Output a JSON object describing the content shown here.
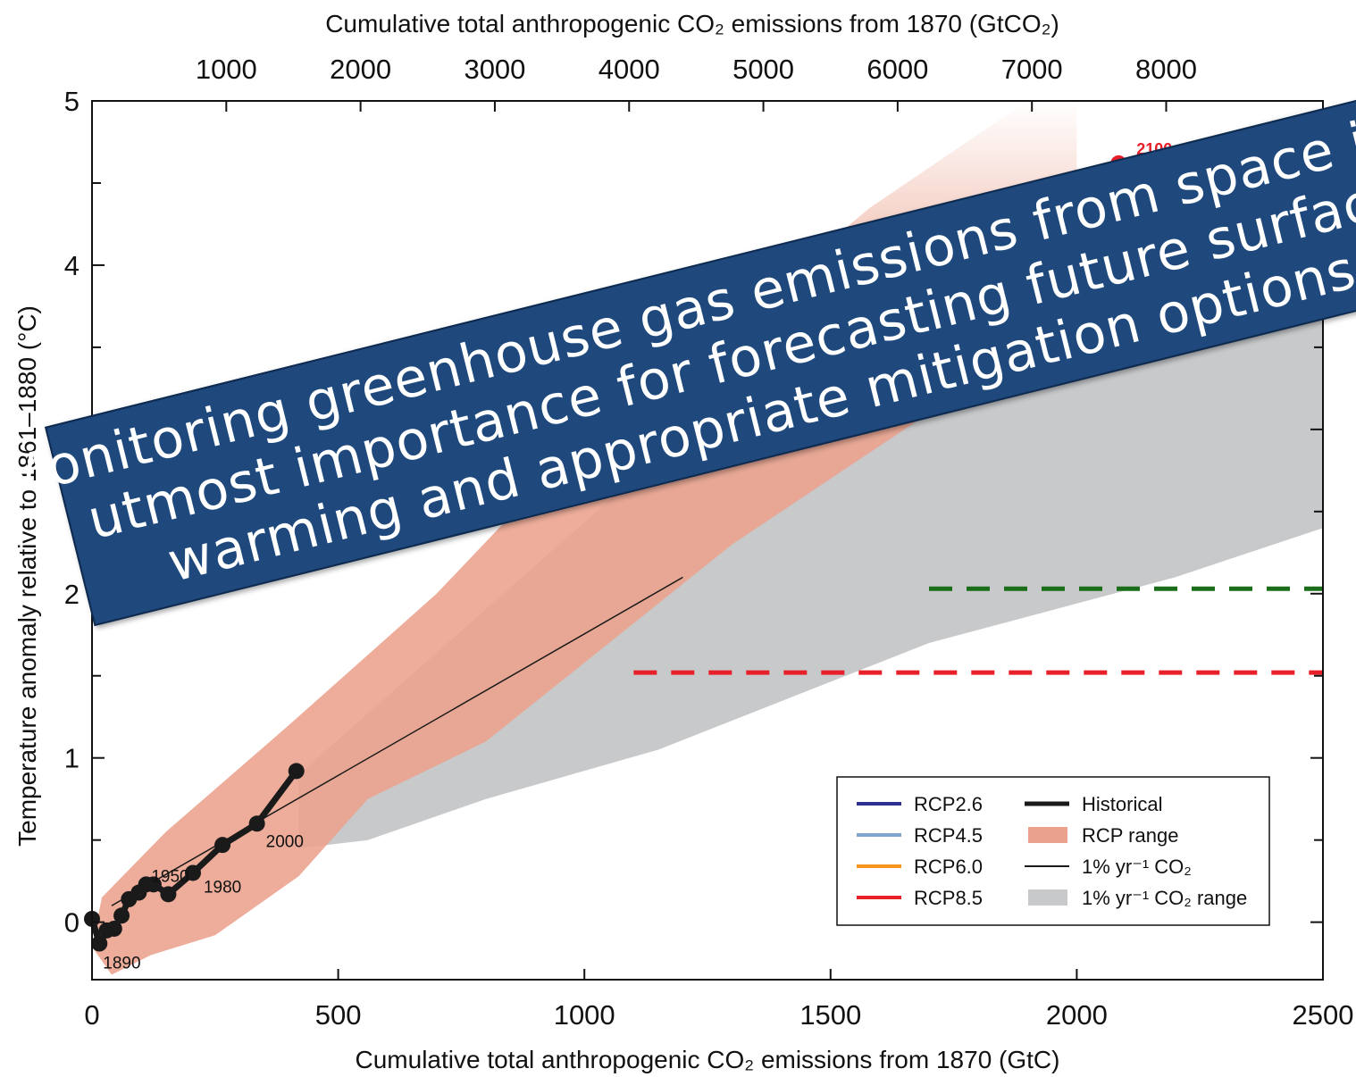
{
  "chart_data": {
    "type": "line",
    "title": "",
    "xlabel": "Cumulative total anthropogenic CO₂ emissions from 1870 (GtC)",
    "x2label": "Cumulative total anthropogenic CO₂ emissions from 1870 (GtCO₂)",
    "ylabel": "Temperature anomaly relative to 1861–1880 (°C)",
    "xlim": [
      0,
      2500
    ],
    "ylim": [
      -0.35,
      5
    ],
    "xticks": [
      "0",
      "500",
      "1000",
      "1500",
      "2000",
      "2500"
    ],
    "yticks": [
      "0",
      "1",
      "2",
      "3",
      "4",
      "5"
    ],
    "x2ticks": [
      "1000",
      "2000",
      "3000",
      "4000",
      "5000",
      "6000",
      "7000",
      "8000"
    ],
    "grid": false,
    "legend_position": "bottom-right",
    "legend": [
      {
        "label": "RCP2.6",
        "color": "#2e3192",
        "kind": "line"
      },
      {
        "label": "RCP4.5",
        "color": "#7fa6d1",
        "kind": "line"
      },
      {
        "label": "RCP6.0",
        "color": "#f7941d",
        "kind": "line"
      },
      {
        "label": "RCP8.5",
        "color": "#e8202a",
        "kind": "line"
      },
      {
        "label": "Historical",
        "color": "#1a1a1a",
        "kind": "thickline"
      },
      {
        "label": "RCP range",
        "color": "#eaa28c",
        "kind": "patch"
      },
      {
        "label": "1% yr⁻¹ CO₂",
        "color": "#1a1a1a",
        "kind": "thinline"
      },
      {
        "label": "1% yr⁻¹ CO₂ range",
        "color": "#c8c9cb",
        "kind": "patch"
      }
    ],
    "series": [
      {
        "name": "Historical",
        "color": "#1a1a1a",
        "x": [
          0,
          15,
          30,
          45,
          60,
          75,
          95,
          110,
          125,
          155,
          205,
          265,
          335,
          415
        ],
        "y": [
          0.02,
          -0.13,
          -0.05,
          -0.04,
          0.04,
          0.14,
          0.18,
          0.23,
          0.23,
          0.17,
          0.3,
          0.47,
          0.6,
          0.92
        ]
      },
      {
        "name": "RCP8.5",
        "color": "#e8202a",
        "x": [
          1580,
          1830,
          2085
        ],
        "y": [
          3.64,
          4.12,
          4.62
        ]
      },
      {
        "name": "1% yr⁻¹ CO₂",
        "color": "#1a1a1a",
        "x": [
          40,
          1200
        ],
        "y": [
          0.1,
          2.1
        ]
      },
      {
        "name": "2°C threshold",
        "color": "#1a6e1a",
        "dashed": true,
        "x": [
          1700,
          2500
        ],
        "y": [
          2.03,
          2.03
        ]
      },
      {
        "name": "1.5°C threshold",
        "color": "#e8202a",
        "dashed": true,
        "x": [
          1100,
          2500
        ],
        "y": [
          1.52,
          1.52
        ]
      }
    ],
    "bands": [
      {
        "name": "1% yr⁻¹ CO₂ range",
        "color": "#c8c9cb",
        "upper": [
          [
            420,
            0.9
          ],
          [
            1100,
            2.7
          ],
          [
            1700,
            3.8
          ],
          [
            2200,
            4.7
          ],
          [
            2500,
            5.0
          ]
        ],
        "lower": [
          [
            2500,
            2.4
          ],
          [
            2200,
            2.1
          ],
          [
            1700,
            1.7
          ],
          [
            1150,
            1.05
          ],
          [
            800,
            0.75
          ],
          [
            560,
            0.5
          ],
          [
            420,
            0.45
          ]
        ]
      },
      {
        "name": "RCP range",
        "color": "#eaa28c",
        "upper": [
          [
            20,
            0.15
          ],
          [
            150,
            0.55
          ],
          [
            400,
            1.2
          ],
          [
            700,
            2.0
          ],
          [
            1150,
            3.42
          ],
          [
            1380,
            3.85
          ],
          [
            1580,
            4.35
          ],
          [
            1900,
            5.0
          ],
          [
            2000,
            5.0
          ]
        ],
        "lower": [
          [
            2000,
            4.2
          ],
          [
            1900,
            3.5
          ],
          [
            1500,
            2.7
          ],
          [
            1300,
            2.3
          ],
          [
            1050,
            1.7
          ],
          [
            800,
            1.1
          ],
          [
            560,
            0.75
          ],
          [
            420,
            0.28
          ],
          [
            250,
            -0.08
          ],
          [
            120,
            -0.2
          ],
          [
            40,
            -0.32
          ],
          [
            0,
            -0.15
          ]
        ]
      }
    ],
    "point_labels": [
      {
        "text": "1890",
        "x": 15,
        "y": -0.13
      },
      {
        "text": "1950",
        "x": 95,
        "y": 0.18
      },
      {
        "text": "1980",
        "x": 205,
        "y": 0.3
      },
      {
        "text": "2000",
        "x": 335,
        "y": 0.6
      },
      {
        "text": "2100",
        "x": 2085,
        "y": 4.62
      }
    ]
  },
  "banner": {
    "lines": [
      "Monitoring greenhouse gas emissions from space is of",
      "utmost importance for forecasting future surface",
      "warming and appropriate mitigation options"
    ],
    "background": "#1f497d"
  }
}
